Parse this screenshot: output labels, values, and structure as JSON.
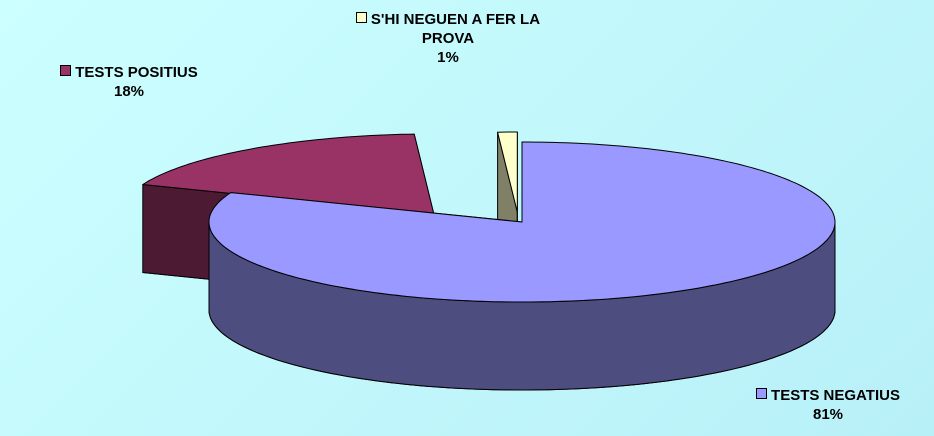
{
  "chart_data": {
    "type": "pie3d",
    "categories": [
      "TESTS NEGATIUS",
      "TESTS POSITIUS",
      "S'HI NEGUEN A FER LA PROVA"
    ],
    "values": [
      81,
      18,
      1
    ],
    "value_labels": [
      "81%",
      "18%",
      "1%"
    ],
    "colors": [
      "#9999ff",
      "#993366",
      "#ffffcc"
    ]
  }
}
